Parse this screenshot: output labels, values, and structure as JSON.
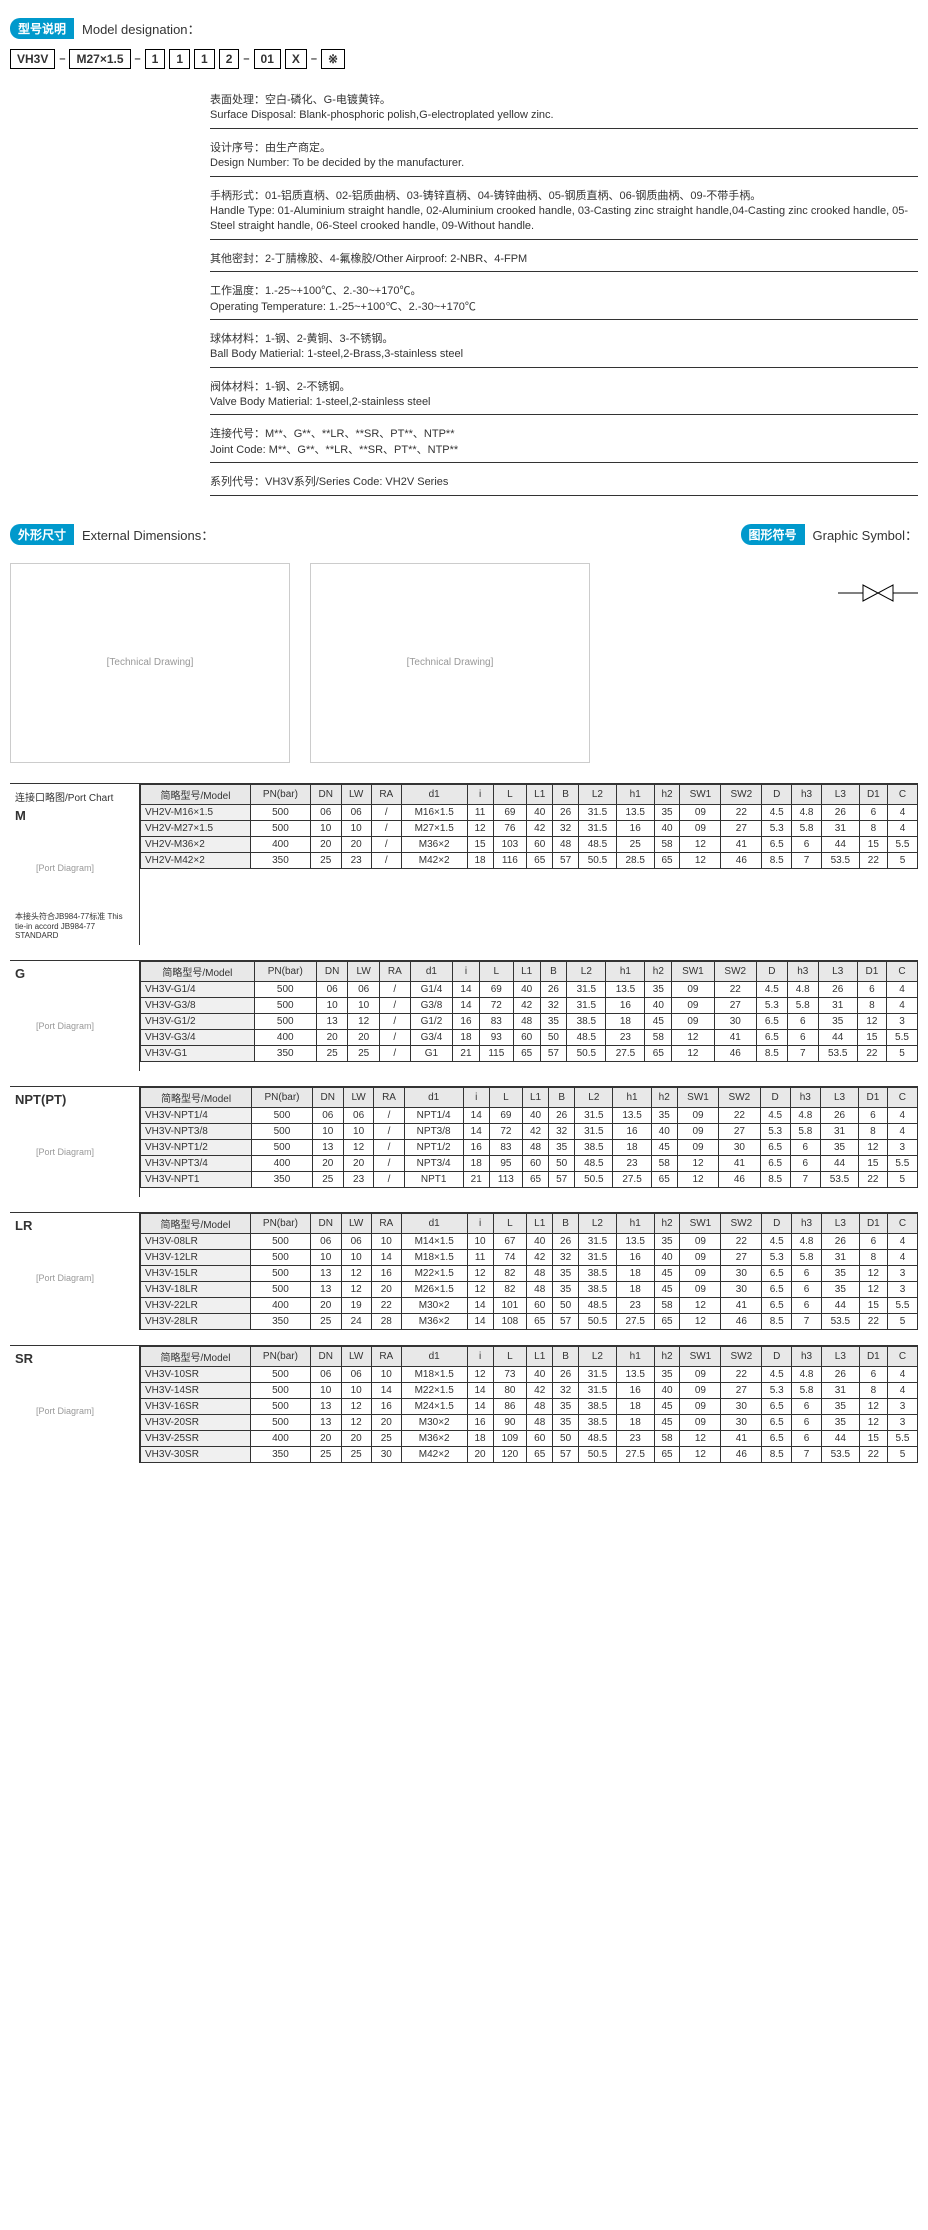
{
  "sections": {
    "model_designation": {
      "badge_cn": "型号说明",
      "title_en": "Model designation："
    },
    "external_dimensions": {
      "badge_cn": "外形尺寸",
      "title_en": "External Dimensions："
    },
    "graphic_symbol": {
      "badge_cn": "图形符号",
      "title_en": "Graphic Symbol："
    }
  },
  "model_parts": [
    "VH3V",
    "M27×1.5",
    "1",
    "1",
    "1",
    "2",
    "01",
    "X",
    "※"
  ],
  "designations": [
    {
      "cn": "表面处理：空白-磷化、G-电镀黄锌。",
      "en": "Surface Disposal: Blank-phosphoric polish,G-electroplated yellow zinc."
    },
    {
      "cn": "设计序号：由生产商定。",
      "en": "Design Number: To be decided by the manufacturer."
    },
    {
      "cn": "手柄形式：01-铝质直柄、02-铝质曲柄、03-铸锌直柄、04-铸锌曲柄、05-钢质直柄、06-钢质曲柄、09-不带手柄。",
      "en": "Handle Type: 01-Aluminium straight handle, 02-Aluminium crooked handle, 03-Casting zinc straight handle,04-Casting zinc crooked handle, 05-Steel straight handle, 06-Steel crooked handle, 09-Without handle."
    },
    {
      "cn": "其他密封：2-丁腈橡胶、4-氟橡胶/Other Airproof: 2-NBR、4-FPM",
      "en": ""
    },
    {
      "cn": "工作温度：1.-25~+100℃、2.-30~+170℃。",
      "en": "Operating Temperature: 1.-25~+100℃、2.-30~+170℃"
    },
    {
      "cn": "球体材料：1-钢、2-黄铜、3-不锈钢。",
      "en": "Ball Body Matierial: 1-steel,2-Brass,3-stainless steel"
    },
    {
      "cn": "阀体材料：1-钢、2-不锈钢。",
      "en": "Valve Body Matierial: 1-steel,2-stainless steel"
    },
    {
      "cn": "连接代号：M**、G**、**LR、**SR、PT**、NTP**",
      "en": "Joint Code: M**、G**、**LR、**SR、PT**、NTP**"
    },
    {
      "cn": "系列代号：VH3V系列/Series Code: VH2V Series",
      "en": ""
    }
  ],
  "port_chart_label": "连接口略图/Port Chart",
  "headers": [
    "简略型号/Model",
    "PN(bar)",
    "DN",
    "LW",
    "RA",
    "d1",
    "i",
    "L",
    "L1",
    "B",
    "L2",
    "h1",
    "h2",
    "SW1",
    "SW2",
    "D",
    "h3",
    "L3",
    "D1",
    "C"
  ],
  "port_groups": [
    {
      "label": "M",
      "note": "本接头符合JB984-77标准\nThis tie-in accord JB984-77 STANDARD",
      "rows": [
        [
          "VH2V-M16×1.5",
          "500",
          "06",
          "06",
          "/",
          "M16×1.5",
          "11",
          "69",
          "40",
          "26",
          "31.5",
          "13.5",
          "35",
          "09",
          "22",
          "4.5",
          "4.8",
          "26",
          "6",
          "4"
        ],
        [
          "VH2V-M27×1.5",
          "500",
          "10",
          "10",
          "/",
          "M27×1.5",
          "12",
          "76",
          "42",
          "32",
          "31.5",
          "16",
          "40",
          "09",
          "27",
          "5.3",
          "5.8",
          "31",
          "8",
          "4"
        ],
        [
          "VH2V-M36×2",
          "400",
          "20",
          "20",
          "/",
          "M36×2",
          "15",
          "103",
          "60",
          "48",
          "48.5",
          "25",
          "58",
          "12",
          "41",
          "6.5",
          "6",
          "44",
          "15",
          "5.5"
        ],
        [
          "VH2V-M42×2",
          "350",
          "25",
          "23",
          "/",
          "M42×2",
          "18",
          "116",
          "65",
          "57",
          "50.5",
          "28.5",
          "65",
          "12",
          "46",
          "8.5",
          "7",
          "53.5",
          "22",
          "5"
        ]
      ]
    },
    {
      "label": "G",
      "note": "",
      "rows": [
        [
          "VH3V-G1/4",
          "500",
          "06",
          "06",
          "/",
          "G1/4",
          "14",
          "69",
          "40",
          "26",
          "31.5",
          "13.5",
          "35",
          "09",
          "22",
          "4.5",
          "4.8",
          "26",
          "6",
          "4"
        ],
        [
          "VH3V-G3/8",
          "500",
          "10",
          "10",
          "/",
          "G3/8",
          "14",
          "72",
          "42",
          "32",
          "31.5",
          "16",
          "40",
          "09",
          "27",
          "5.3",
          "5.8",
          "31",
          "8",
          "4"
        ],
        [
          "VH3V-G1/2",
          "500",
          "13",
          "12",
          "/",
          "G1/2",
          "16",
          "83",
          "48",
          "35",
          "38.5",
          "18",
          "45",
          "09",
          "30",
          "6.5",
          "6",
          "35",
          "12",
          "3"
        ],
        [
          "VH3V-G3/4",
          "400",
          "20",
          "20",
          "/",
          "G3/4",
          "18",
          "93",
          "60",
          "50",
          "48.5",
          "23",
          "58",
          "12",
          "41",
          "6.5",
          "6",
          "44",
          "15",
          "5.5"
        ],
        [
          "VH3V-G1",
          "350",
          "25",
          "25",
          "/",
          "G1",
          "21",
          "115",
          "65",
          "57",
          "50.5",
          "27.5",
          "65",
          "12",
          "46",
          "8.5",
          "7",
          "53.5",
          "22",
          "5"
        ]
      ]
    },
    {
      "label": "NPT(PT)",
      "note": "",
      "rows": [
        [
          "VH3V-NPT1/4",
          "500",
          "06",
          "06",
          "/",
          "NPT1/4",
          "14",
          "69",
          "40",
          "26",
          "31.5",
          "13.5",
          "35",
          "09",
          "22",
          "4.5",
          "4.8",
          "26",
          "6",
          "4"
        ],
        [
          "VH3V-NPT3/8",
          "500",
          "10",
          "10",
          "/",
          "NPT3/8",
          "14",
          "72",
          "42",
          "32",
          "31.5",
          "16",
          "40",
          "09",
          "27",
          "5.3",
          "5.8",
          "31",
          "8",
          "4"
        ],
        [
          "VH3V-NPT1/2",
          "500",
          "13",
          "12",
          "/",
          "NPT1/2",
          "16",
          "83",
          "48",
          "35",
          "38.5",
          "18",
          "45",
          "09",
          "30",
          "6.5",
          "6",
          "35",
          "12",
          "3"
        ],
        [
          "VH3V-NPT3/4",
          "400",
          "20",
          "20",
          "/",
          "NPT3/4",
          "18",
          "95",
          "60",
          "50",
          "48.5",
          "23",
          "58",
          "12",
          "41",
          "6.5",
          "6",
          "44",
          "15",
          "5.5"
        ],
        [
          "VH3V-NPT1",
          "350",
          "25",
          "23",
          "/",
          "NPT1",
          "21",
          "113",
          "65",
          "57",
          "50.5",
          "27.5",
          "65",
          "12",
          "46",
          "8.5",
          "7",
          "53.5",
          "22",
          "5"
        ]
      ]
    },
    {
      "label": "LR",
      "note": "",
      "rows": [
        [
          "VH3V-08LR",
          "500",
          "06",
          "06",
          "10",
          "M14×1.5",
          "10",
          "67",
          "40",
          "26",
          "31.5",
          "13.5",
          "35",
          "09",
          "22",
          "4.5",
          "4.8",
          "26",
          "6",
          "4"
        ],
        [
          "VH3V-12LR",
          "500",
          "10",
          "10",
          "14",
          "M18×1.5",
          "11",
          "74",
          "42",
          "32",
          "31.5",
          "16",
          "40",
          "09",
          "27",
          "5.3",
          "5.8",
          "31",
          "8",
          "4"
        ],
        [
          "VH3V-15LR",
          "500",
          "13",
          "12",
          "16",
          "M22×1.5",
          "12",
          "82",
          "48",
          "35",
          "38.5",
          "18",
          "45",
          "09",
          "30",
          "6.5",
          "6",
          "35",
          "12",
          "3"
        ],
        [
          "VH3V-18LR",
          "500",
          "13",
          "12",
          "20",
          "M26×1.5",
          "12",
          "82",
          "48",
          "35",
          "38.5",
          "18",
          "45",
          "09",
          "30",
          "6.5",
          "6",
          "35",
          "12",
          "3"
        ],
        [
          "VH3V-22LR",
          "400",
          "20",
          "19",
          "22",
          "M30×2",
          "14",
          "101",
          "60",
          "50",
          "48.5",
          "23",
          "58",
          "12",
          "41",
          "6.5",
          "6",
          "44",
          "15",
          "5.5"
        ],
        [
          "VH3V-28LR",
          "350",
          "25",
          "24",
          "28",
          "M36×2",
          "14",
          "108",
          "65",
          "57",
          "50.5",
          "27.5",
          "65",
          "12",
          "46",
          "8.5",
          "7",
          "53.5",
          "22",
          "5"
        ]
      ]
    },
    {
      "label": "SR",
      "note": "",
      "rows": [
        [
          "VH3V-10SR",
          "500",
          "06",
          "06",
          "10",
          "M18×1.5",
          "12",
          "73",
          "40",
          "26",
          "31.5",
          "13.5",
          "35",
          "09",
          "22",
          "4.5",
          "4.8",
          "26",
          "6",
          "4"
        ],
        [
          "VH3V-14SR",
          "500",
          "10",
          "10",
          "14",
          "M22×1.5",
          "14",
          "80",
          "42",
          "32",
          "31.5",
          "16",
          "40",
          "09",
          "27",
          "5.3",
          "5.8",
          "31",
          "8",
          "4"
        ],
        [
          "VH3V-16SR",
          "500",
          "13",
          "12",
          "16",
          "M24×1.5",
          "14",
          "86",
          "48",
          "35",
          "38.5",
          "18",
          "45",
          "09",
          "30",
          "6.5",
          "6",
          "35",
          "12",
          "3"
        ],
        [
          "VH3V-20SR",
          "500",
          "13",
          "12",
          "20",
          "M30×2",
          "16",
          "90",
          "48",
          "35",
          "38.5",
          "18",
          "45",
          "09",
          "30",
          "6.5",
          "6",
          "35",
          "12",
          "3"
        ],
        [
          "VH3V-25SR",
          "400",
          "20",
          "20",
          "25",
          "M36×2",
          "18",
          "109",
          "60",
          "50",
          "48.5",
          "23",
          "58",
          "12",
          "41",
          "6.5",
          "6",
          "44",
          "15",
          "5.5"
        ],
        [
          "VH3V-30SR",
          "350",
          "25",
          "25",
          "30",
          "M42×2",
          "20",
          "120",
          "65",
          "57",
          "50.5",
          "27.5",
          "65",
          "12",
          "46",
          "8.5",
          "7",
          "53.5",
          "22",
          "5"
        ]
      ]
    }
  ],
  "drawing_placeholder": "[Technical Drawing]",
  "port_drawing_placeholder": "[Port Diagram]"
}
